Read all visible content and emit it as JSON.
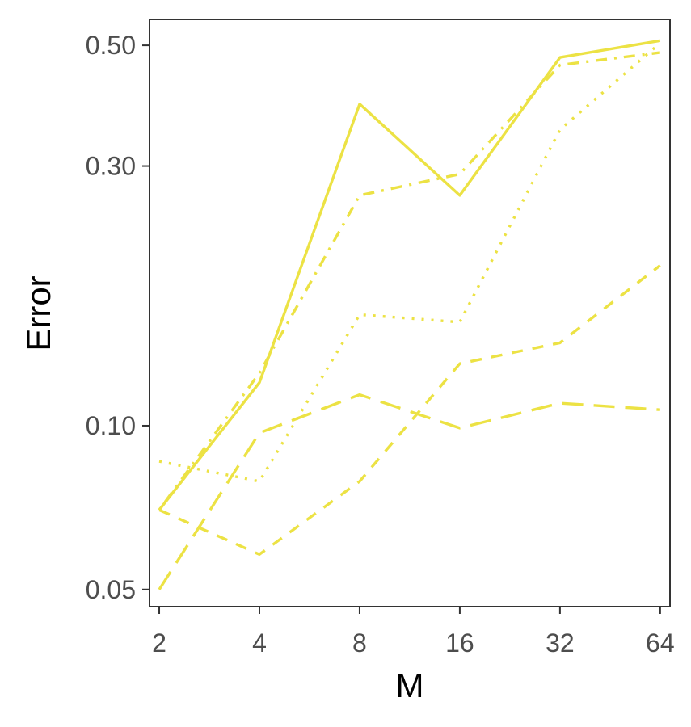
{
  "chart_data": {
    "type": "line",
    "title": "",
    "xlabel": "M",
    "ylabel": "Error",
    "x_scale": "log2",
    "y_scale": "log10",
    "x": [
      2,
      4,
      8,
      16,
      32,
      64
    ],
    "x_tick_labels": [
      "2",
      "4",
      "8",
      "16",
      "32",
      "64"
    ],
    "y_ticks": [
      0.05,
      0.1,
      0.3,
      0.5
    ],
    "y_tick_labels": [
      "0.05",
      "0.10",
      "0.30",
      "0.50"
    ],
    "xlim": [
      1.87,
      68.5
    ],
    "ylim": [
      0.0465,
      0.558
    ],
    "grid": false,
    "legend": "none",
    "line_color": "#ECE244",
    "series": [
      {
        "style": "solid",
        "values": [
          0.07,
          0.12,
          0.39,
          0.265,
          0.475,
          0.51
        ]
      },
      {
        "style": "dotdash",
        "values": [
          0.07,
          0.125,
          0.265,
          0.29,
          0.46,
          0.485
        ]
      },
      {
        "style": "dotted",
        "values": [
          0.086,
          0.079,
          0.16,
          0.155,
          0.35,
          0.505
        ]
      },
      {
        "style": "dashed",
        "values": [
          0.07,
          0.058,
          0.079,
          0.13,
          0.142,
          0.197
        ]
      },
      {
        "style": "longdash",
        "values": [
          0.05,
          0.097,
          0.114,
          0.099,
          0.11,
          0.107
        ]
      }
    ]
  }
}
